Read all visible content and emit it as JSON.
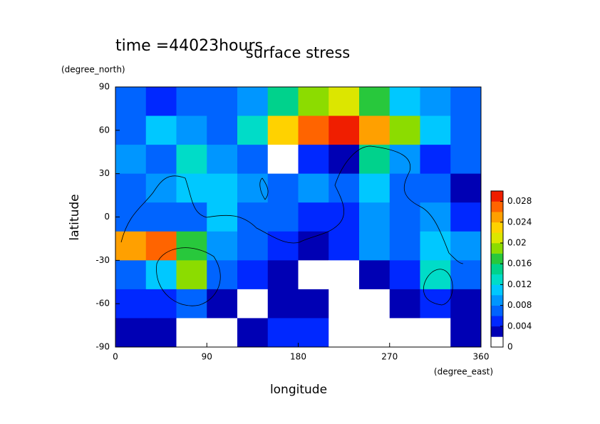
{
  "chart_data": {
    "type": "contour",
    "title": "time =44023hours",
    "subtitle": "surface stress",
    "x_label": "longitude",
    "x_units": "(degree_east)",
    "y_label": "latitude",
    "y_units": "(degree_north)",
    "xlim": [
      0,
      360
    ],
    "xticks": [
      0,
      90,
      180,
      270,
      360
    ],
    "ylim": [
      -90,
      90
    ],
    "yticks": [
      -90,
      -60,
      -30,
      0,
      30,
      60,
      90
    ],
    "x_edges": [
      0,
      30,
      60,
      90,
      120,
      150,
      180,
      210,
      240,
      270,
      300,
      330,
      360
    ],
    "y_edges": [
      90,
      70,
      50,
      30,
      10,
      -10,
      -30,
      -50,
      -70,
      -90
    ],
    "z": [
      [
        0.006,
        0.005,
        0.006,
        0.006,
        0.008,
        0.014,
        0.018,
        0.02,
        0.016,
        0.01,
        0.008,
        0.006
      ],
      [
        0.006,
        0.01,
        0.008,
        0.006,
        0.012,
        0.022,
        0.026,
        0.028,
        0.024,
        0.018,
        0.01,
        0.006
      ],
      [
        0.008,
        0.006,
        0.012,
        0.008,
        0.006,
        0,
        0.004,
        0.002,
        0.014,
        0.008,
        0.004,
        0.006
      ],
      [
        0.006,
        0.008,
        0.01,
        0.01,
        0.008,
        0.006,
        0.008,
        0.006,
        0.01,
        0.006,
        0.006,
        0.002
      ],
      [
        0.006,
        0.006,
        0.006,
        0.01,
        0.006,
        0.006,
        0.004,
        0.004,
        0.008,
        0.006,
        0.008,
        0.004
      ],
      [
        0.024,
        0.026,
        0.016,
        0.008,
        0.006,
        0.004,
        0.002,
        0.004,
        0.008,
        0.006,
        0.01,
        0.008
      ],
      [
        0.006,
        0.01,
        0.018,
        0.006,
        0.004,
        0.002,
        0,
        0,
        0.002,
        0.004,
        0.012,
        0.006
      ],
      [
        0.004,
        0.004,
        0.006,
        0.002,
        0,
        0.002,
        0.002,
        0,
        0,
        0.002,
        0.004,
        0.002
      ],
      [
        0.002,
        0.002,
        0,
        0,
        0.002,
        0.004,
        0.004,
        0,
        0,
        0,
        0,
        0.002
      ]
    ],
    "levels": [
      0,
      0.002,
      0.004,
      0.006,
      0.008,
      0.01,
      0.012,
      0.014,
      0.016,
      0.018,
      0.02,
      0.022,
      0.024,
      0.026,
      0.028,
      0.03
    ],
    "colors": [
      "#ffffff",
      "#0000b4",
      "#0028ff",
      "#0064ff",
      "#0096ff",
      "#00c8ff",
      "#00dcc8",
      "#00d28c",
      "#28c83c",
      "#8cdc00",
      "#dce600",
      "#ffd200",
      "#ffa000",
      "#ff6400",
      "#f01e00"
    ],
    "clim": [
      0,
      0.03
    ],
    "cticks": [
      0,
      0.004,
      0.008,
      0.012,
      0.016,
      0.02,
      0.024,
      0.028
    ]
  }
}
